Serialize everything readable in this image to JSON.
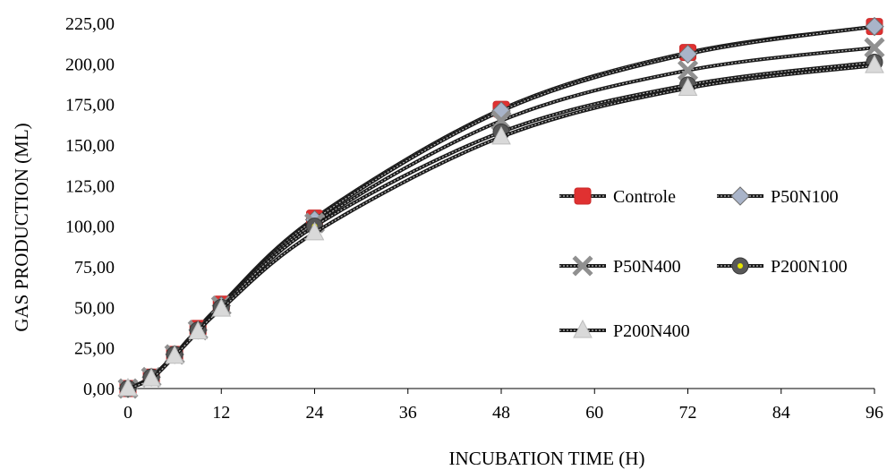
{
  "chart_data": {
    "type": "line",
    "title": "",
    "xlabel": "INCUBATION TIME (H)",
    "ylabel": "GAS PRODUCTION  (ML)",
    "xlim": [
      0,
      96
    ],
    "ylim": [
      0,
      225
    ],
    "xticks": [
      "0",
      "12",
      "24",
      "36",
      "48",
      "60",
      "72",
      "84",
      "96"
    ],
    "yticks": [
      "0,00",
      "25,00",
      "50,00",
      "75,00",
      "100,00",
      "125,00",
      "150,00",
      "175,00",
      "200,00",
      "225,00"
    ],
    "grid": false,
    "legend_position": "right",
    "x": [
      0,
      3,
      6,
      9,
      12,
      24,
      48,
      72,
      96
    ],
    "series": [
      {
        "name": "Controle",
        "marker": "square",
        "color": "#e03131",
        "values": [
          0,
          7,
          21,
          37,
          52,
          105,
          172,
          207,
          223
        ]
      },
      {
        "name": "P50N100",
        "marker": "diamond",
        "color": "#a9b4c9",
        "values": [
          0,
          7,
          21,
          36,
          51,
          104,
          171,
          206,
          223
        ]
      },
      {
        "name": "P50N400",
        "marker": "x",
        "color": "#909090",
        "values": [
          0,
          7,
          21,
          36,
          51,
          102,
          165,
          196,
          210
        ]
      },
      {
        "name": "P200N100",
        "marker": "circle",
        "color": "#585858",
        "values": [
          0,
          7,
          21,
          36,
          50,
          100,
          158,
          187,
          201
        ]
      },
      {
        "name": "P200N400",
        "marker": "triangle",
        "color": "#d9d9d9",
        "values": [
          0,
          6,
          20,
          35,
          49,
          96,
          155,
          185,
          199
        ]
      }
    ]
  }
}
